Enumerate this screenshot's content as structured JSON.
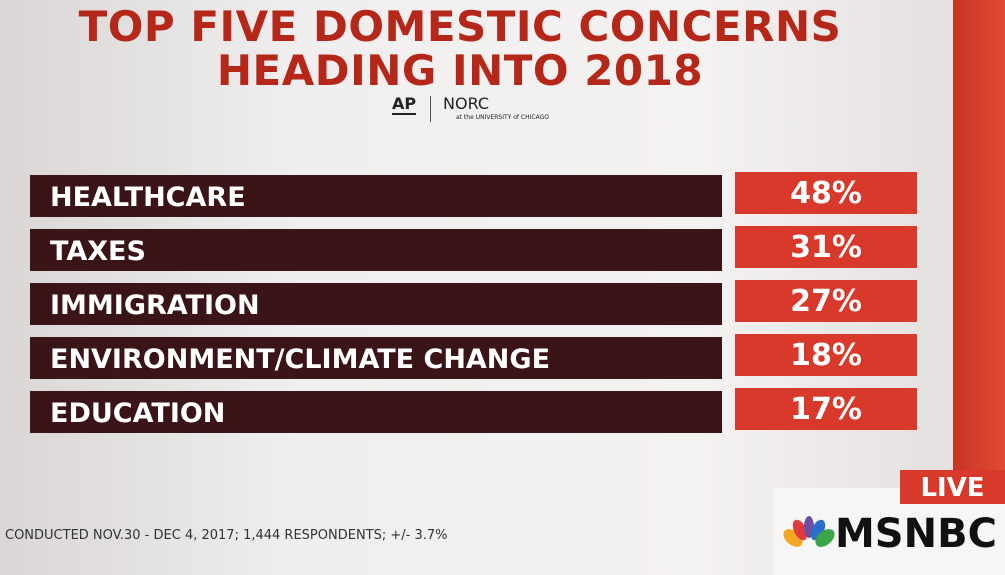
{
  "header": {
    "title_lines": [
      "TOP FIVE DOMESTIC CONCERNS",
      "HEADING INTO 2018"
    ],
    "logo_left": "AP",
    "logo_right": "NORC",
    "logo_sub": "at the UNIVERSITY of CHICAGO"
  },
  "table": {
    "rows": [
      [
        "HEALTHCARE",
        "48%"
      ],
      [
        "TAXES",
        "31%"
      ],
      [
        "IMMIGRATION",
        "27%"
      ],
      [
        "ENVIRONMENT/CLIMATE CHANGE",
        "18%"
      ],
      [
        "EDUCATION",
        "17%"
      ]
    ]
  },
  "footer": {
    "note": "CONDUCTED NOV.30 - DEC 4, 2017; 1,444 RESPONDENTS; +/- 3.7%"
  },
  "bug": {
    "live": "LIVE",
    "network": "MSNBC"
  }
}
